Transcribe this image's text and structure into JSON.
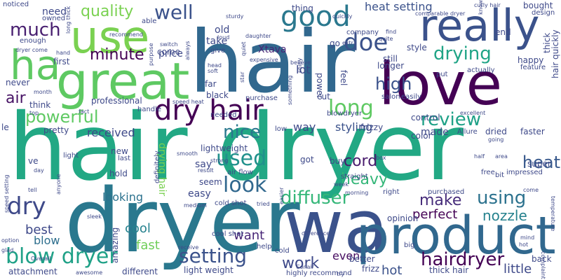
{
  "words": [
    {
      "text": "hair dryer",
      "color": "#22a884"
    },
    {
      "text": "hair",
      "color": "#31688e"
    },
    {
      "text": "dryer",
      "color": "#2a788e"
    },
    {
      "text": "wa",
      "color": "#3b528b"
    },
    {
      "text": "product",
      "color": "#31688e"
    },
    {
      "text": "love",
      "color": "#440154"
    },
    {
      "text": "really",
      "color": "#3b528b"
    },
    {
      "text": "great",
      "color": "#5ec962"
    },
    {
      "text": "use",
      "color": "#7ad151"
    },
    {
      "text": "ha",
      "color": "#5ec962"
    },
    {
      "text": "dry hair",
      "color": "#440154"
    },
    {
      "text": "good",
      "color": "#2a788e"
    },
    {
      "text": "doe",
      "color": "#3b528b"
    },
    {
      "text": "much",
      "color": "#481f70"
    },
    {
      "text": "quality",
      "color": "#7ad151"
    },
    {
      "text": "well",
      "color": "#3b528b"
    },
    {
      "text": "drying",
      "color": "#20a486"
    },
    {
      "text": "review",
      "color": "#1fa187"
    },
    {
      "text": "long",
      "color": "#5ec962"
    },
    {
      "text": "high",
      "color": "#3b528b"
    },
    {
      "text": "powerful",
      "color": "#5ec962"
    },
    {
      "text": "nice",
      "color": "#2a788e"
    },
    {
      "text": "used",
      "color": "#21918c"
    },
    {
      "text": "look",
      "color": "#31688e"
    },
    {
      "text": "dry",
      "color": "#3e4989"
    },
    {
      "text": "diffuser",
      "color": "#35b779"
    },
    {
      "text": "using",
      "color": "#2c728e"
    },
    {
      "text": "make",
      "color": "#472d7b"
    },
    {
      "text": "blow dryer",
      "color": "#1fa187"
    },
    {
      "text": "setting",
      "color": "#3b528b"
    },
    {
      "text": "hairdryer",
      "color": "#440154"
    },
    {
      "text": "work",
      "color": "#3e4989"
    },
    {
      "text": "heat",
      "color": "#38598c"
    },
    {
      "text": "minute",
      "color": "#440154"
    },
    {
      "text": "cord",
      "color": "#481b6d"
    },
    {
      "text": "heavy",
      "color": "#35b779"
    },
    {
      "text": "air",
      "color": "#471365"
    },
    {
      "text": "styling",
      "color": "#3b528b"
    },
    {
      "text": "heat setting",
      "color": "#3b528b"
    },
    {
      "text": "perfect",
      "color": "#440154"
    },
    {
      "text": "nozzle",
      "color": "#26828e"
    },
    {
      "text": "little",
      "color": "#3e4989"
    },
    {
      "text": "hot",
      "color": "#3b528b"
    },
    {
      "text": "even",
      "color": "#470e61"
    },
    {
      "text": "want",
      "color": "#482677"
    },
    {
      "text": "best",
      "color": "#3e4989"
    },
    {
      "text": "cool",
      "color": "#26828e"
    },
    {
      "text": "fast",
      "color": "#6ece58"
    },
    {
      "text": "blow",
      "color": "#2e6f8e"
    },
    {
      "text": "way",
      "color": "#3e4989"
    },
    {
      "text": "received",
      "color": "#3e4989"
    },
    {
      "text": "looking",
      "color": "#2c728e"
    },
    {
      "text": "lot",
      "color": "#3e4989"
    },
    {
      "text": "price",
      "color": "#3e4989"
    },
    {
      "text": "take",
      "color": "#3e4989"
    },
    {
      "text": "old",
      "color": "#3e4989"
    },
    {
      "text": "Xtava",
      "color": "#482677"
    },
    {
      "text": "need",
      "color": "#3e4989"
    },
    {
      "text": "first",
      "color": "#3e4989"
    },
    {
      "text": "professional",
      "color": "#3e4989"
    },
    {
      "text": "say",
      "color": "#3e4989"
    },
    {
      "text": "made",
      "color": "#3e4989"
    },
    {
      "text": "super",
      "color": "#3e4989"
    },
    {
      "text": "easy",
      "color": "#3e4989"
    },
    {
      "text": "drying hair",
      "color": "#7ad151"
    },
    {
      "text": "lightweight",
      "color": "#3e4989"
    },
    {
      "text": "seem",
      "color": "#3e4989"
    },
    {
      "text": "hold",
      "color": "#3e4989"
    },
    {
      "text": "new",
      "color": "#3e4989"
    },
    {
      "text": "light weight",
      "color": "#3e4989"
    },
    {
      "text": "thick hair",
      "color": "#3e4989"
    },
    {
      "text": "hair quickly",
      "color": "#3e4989"
    },
    {
      "text": "frizzy",
      "color": "#3e4989"
    },
    {
      "text": "frizz",
      "color": "#3e4989"
    },
    {
      "text": "different",
      "color": "#3e4989"
    },
    {
      "text": "attachment",
      "color": "#3e4989"
    },
    {
      "text": "amazing",
      "color": "#3e4989"
    },
    {
      "text": "pretty",
      "color": "#3e4989"
    },
    {
      "text": "think",
      "color": "#3e4989"
    },
    {
      "text": "never",
      "color": "#3e4989"
    },
    {
      "text": "feel",
      "color": "#3e4989"
    },
    {
      "text": "power",
      "color": "#3e4989"
    },
    {
      "text": "cut",
      "color": "#3e4989"
    },
    {
      "text": "got",
      "color": "#3e4989"
    },
    {
      "text": "buy",
      "color": "#3e4989"
    },
    {
      "text": "still",
      "color": "#3e4989"
    },
    {
      "text": "longer",
      "color": "#3e4989"
    },
    {
      "text": "style",
      "color": "#3e4989"
    },
    {
      "text": "happy",
      "color": "#3e4989"
    },
    {
      "text": "thick",
      "color": "#3e4989"
    },
    {
      "text": "end",
      "color": "#3e4989"
    },
    {
      "text": "bought",
      "color": "#3e4989"
    },
    {
      "text": "design",
      "color": "#3e4989"
    },
    {
      "text": "control",
      "color": "#3e4989"
    },
    {
      "text": "color",
      "color": "#3e4989"
    },
    {
      "text": "dried",
      "color": "#3e4989"
    },
    {
      "text": "faster",
      "color": "#3e4989"
    },
    {
      "text": "opinion",
      "color": "#3e4989"
    },
    {
      "text": "back",
      "color": "#3e4989"
    },
    {
      "text": "better",
      "color": "#3e4989"
    },
    {
      "text": "cold",
      "color": "#3e4989"
    },
    {
      "text": "help",
      "color": "#3e4989"
    },
    {
      "text": "go",
      "color": "#3e4989"
    },
    {
      "text": "thing",
      "color": "#3e4989"
    },
    {
      "text": "company",
      "color": "#3e4989"
    },
    {
      "text": "put",
      "color": "#3e4989"
    },
    {
      "text": "actually",
      "color": "#3e4989"
    },
    {
      "text": "feature",
      "color": "#3e4989"
    },
    {
      "text": "blowdryer",
      "color": "#3e4989"
    },
    {
      "text": "salon",
      "color": "#3e4989"
    },
    {
      "text": "easily",
      "color": "#3e4989"
    },
    {
      "text": "purchase",
      "color": "#3e4989"
    },
    {
      "text": "black",
      "color": "#3e4989"
    },
    {
      "text": "far",
      "color": "#3e4989"
    },
    {
      "text": "come",
      "color": "#3e4989"
    },
    {
      "text": "give",
      "color": "#3e4989"
    },
    {
      "text": "owned",
      "color": "#3e4989"
    },
    {
      "text": "noticed",
      "color": "#3e4989"
    },
    {
      "text": "enough",
      "color": "#3e4989"
    },
    {
      "text": "dryer come",
      "color": "#3e4989"
    },
    {
      "text": "able",
      "color": "#3e4989"
    },
    {
      "text": "recommend",
      "color": "#3e4989"
    },
    {
      "text": "curly hair",
      "color": "#3e4989"
    },
    {
      "text": "quickly",
      "color": "#3e4989"
    },
    {
      "text": "needed",
      "color": "#3e4989"
    },
    {
      "text": "air flow",
      "color": "#3e4989"
    },
    {
      "text": "cold shot",
      "color": "#3e4989"
    },
    {
      "text": "cool shot",
      "color": "#3e4989"
    },
    {
      "text": "highly recommend",
      "color": "#3e4989"
    },
    {
      "text": "Allure",
      "color": "#3e4989"
    },
    {
      "text": "going",
      "color": "#3e4989"
    },
    {
      "text": "impressed",
      "color": "#3e4989"
    },
    {
      "text": "free",
      "color": "#3e4989"
    },
    {
      "text": "bit",
      "color": "#3e4989"
    },
    {
      "text": "half",
      "color": "#3e4989"
    },
    {
      "text": "straight",
      "color": "#3e4989"
    },
    {
      "text": "morning",
      "color": "#3e4989"
    },
    {
      "text": "right",
      "color": "#3e4989"
    },
    {
      "text": "purchased",
      "color": "#3e4989"
    },
    {
      "text": "big",
      "color": "#3e4989"
    },
    {
      "text": "mind",
      "color": "#3e4989"
    },
    {
      "text": "try",
      "color": "#3e4989"
    },
    {
      "text": "Conair",
      "color": "#3e4989"
    },
    {
      "text": "Overall",
      "color": "#3e4989"
    },
    {
      "text": "awesome",
      "color": "#3e4989"
    },
    {
      "text": "option",
      "color": "#3e4989"
    },
    {
      "text": "glad",
      "color": "#3e4989"
    },
    {
      "text": "speed setting",
      "color": "#3e4989"
    },
    {
      "text": "tell",
      "color": "#3e4989"
    },
    {
      "text": "ve",
      "color": "#3e4989"
    },
    {
      "text": "le",
      "color": "#3e4989"
    },
    {
      "text": "light",
      "color": "#3e4989"
    },
    {
      "text": "day",
      "color": "#3e4989"
    },
    {
      "text": "anyone",
      "color": "#3e4989"
    },
    {
      "text": "last",
      "color": "#3e4989"
    },
    {
      "text": "definitely",
      "color": "#3e4989"
    },
    {
      "text": "sleek",
      "color": "#3e4989"
    },
    {
      "text": "medium",
      "color": "#3e4989"
    },
    {
      "text": "smooth",
      "color": "#3e4989"
    },
    {
      "text": "strong",
      "color": "#3e4989"
    },
    {
      "text": "low",
      "color": "#3e4989"
    },
    {
      "text": "fact",
      "color": "#3e4989"
    },
    {
      "text": "handle",
      "color": "#3e4989"
    },
    {
      "text": "speed heat",
      "color": "#3e4989"
    },
    {
      "text": "something",
      "color": "#3e4989"
    },
    {
      "text": "shiny",
      "color": "#3e4989"
    },
    {
      "text": "quiet",
      "color": "#3e4989"
    },
    {
      "text": "daughter",
      "color": "#3e4989"
    },
    {
      "text": "expensive",
      "color": "#3e4989"
    },
    {
      "text": "believe",
      "color": "#3e4989"
    },
    {
      "text": "head",
      "color": "#3e4989"
    },
    {
      "text": "soft",
      "color": "#3e4989"
    },
    {
      "text": "switch",
      "color": "#3e4989"
    },
    {
      "text": "loud",
      "color": "#3e4989"
    },
    {
      "text": "sturdy",
      "color": "#3e4989"
    },
    {
      "text": "always",
      "color": "#3e4989"
    },
    {
      "text": "hand",
      "color": "#3e4989"
    },
    {
      "text": "long thick",
      "color": "#3e4989"
    },
    {
      "text": "purpose",
      "color": "#3e4989"
    },
    {
      "text": "star",
      "color": "#3e4989"
    },
    {
      "text": "month",
      "color": "#3e4989"
    },
    {
      "text": "top",
      "color": "#3e4989"
    },
    {
      "text": "extra",
      "color": "#3e4989"
    },
    {
      "text": "quite",
      "color": "#3e4989"
    },
    {
      "text": "find",
      "color": "#3e4989"
    },
    {
      "text": "comparable dryer",
      "color": "#3e4989"
    },
    {
      "text": "know",
      "color": "#3e4989"
    },
    {
      "text": "excellent",
      "color": "#3e4989"
    },
    {
      "text": "area",
      "color": "#3e4989"
    },
    {
      "text": "come",
      "color": "#3e4989"
    },
    {
      "text": "temperature",
      "color": "#3e4989"
    },
    {
      "text": "complaint",
      "color": "#3e4989"
    },
    {
      "text": "result",
      "color": "#3e4989"
    },
    {
      "text": "week",
      "color": "#3e4989"
    },
    {
      "text": "tried",
      "color": "#3e4989"
    },
    {
      "text": "easier",
      "color": "#3e4989"
    },
    {
      "text": "difference",
      "color": "#3e4989"
    },
    {
      "text": "receive",
      "color": "#3e4989"
    },
    {
      "text": "hot",
      "color": "#3e4989"
    },
    {
      "text": "box",
      "color": "#3e4989"
    }
  ]
}
